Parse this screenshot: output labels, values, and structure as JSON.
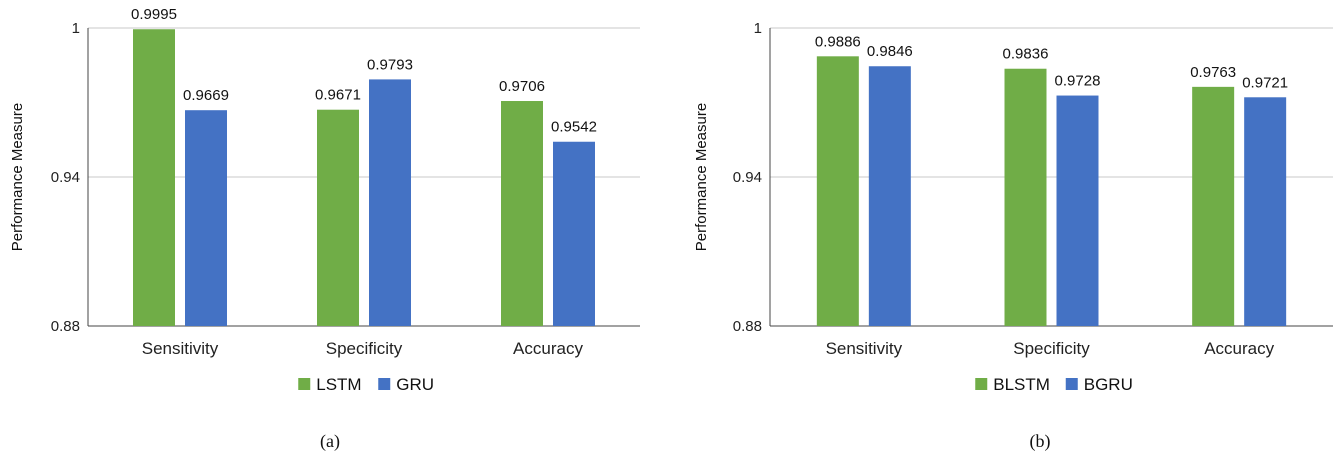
{
  "chart_data": [
    {
      "type": "bar",
      "caption": "(a)",
      "ylabel": "Performance Measure",
      "ylim": [
        0.88,
        1
      ],
      "yticks": [
        "0.88",
        "0.94",
        "1"
      ],
      "categories": [
        "Sensitivity",
        "Specificity",
        "Accuracy"
      ],
      "series": [
        {
          "name": "LSTM",
          "color": "#70ad47",
          "values": [
            0.9995,
            0.9671,
            0.9706
          ],
          "labels": [
            "0.9995",
            "0.9671",
            "0.9706"
          ]
        },
        {
          "name": "GRU",
          "color": "#4472c4",
          "values": [
            0.9669,
            0.9793,
            0.9542
          ],
          "labels": [
            "0.9669",
            "0.9793",
            "0.9542"
          ]
        }
      ],
      "grid": true,
      "legend": "bottom"
    },
    {
      "type": "bar",
      "caption": "(b)",
      "ylabel": "Performance Measure",
      "ylim": [
        0.88,
        1
      ],
      "yticks": [
        "0.88",
        "0.94",
        "1"
      ],
      "categories": [
        "Sensitivity",
        "Specificity",
        "Accuracy"
      ],
      "series": [
        {
          "name": "BLSTM",
          "color": "#70ad47",
          "values": [
            0.9886,
            0.9836,
            0.9763
          ],
          "labels": [
            "0.9886",
            "0.9836",
            "0.9763"
          ]
        },
        {
          "name": "BGRU",
          "color": "#4472c4",
          "values": [
            0.9846,
            0.9728,
            0.9721
          ],
          "labels": [
            "0.9846",
            "0.9728",
            "0.9721"
          ]
        }
      ],
      "grid": true,
      "legend": "bottom"
    }
  ]
}
